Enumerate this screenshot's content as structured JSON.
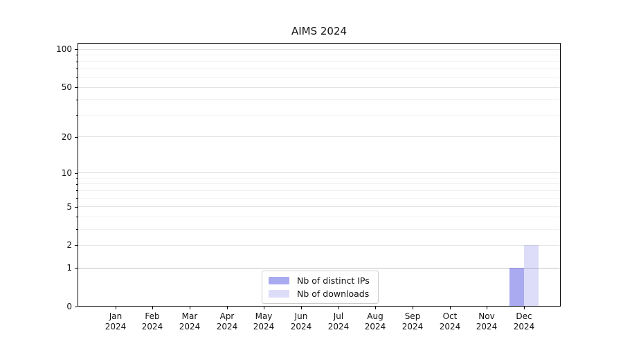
{
  "figure": {
    "title": "AIMS 2024",
    "background": "#ffffff"
  },
  "chart_data": {
    "type": "bar",
    "title": "AIMS 2024",
    "categories": [
      "Jan 2024",
      "Feb 2024",
      "Mar 2024",
      "Apr 2024",
      "May 2024",
      "Jun 2024",
      "Jul 2024",
      "Aug 2024",
      "Sep 2024",
      "Oct 2024",
      "Nov 2024",
      "Dec 2024"
    ],
    "series": [
      {
        "name": "Nb of distinct IPs",
        "color": "rgba(100,100,230,0.55)",
        "values": [
          0,
          0,
          0,
          0,
          0,
          0,
          0,
          0,
          0,
          0,
          0,
          1
        ]
      },
      {
        "name": "Nb of downloads",
        "color": "rgba(100,100,230,0.22)",
        "values": [
          0,
          0,
          0,
          0,
          0,
          0,
          0,
          0,
          0,
          0,
          0,
          2
        ]
      }
    ],
    "yscale": "log1p",
    "ylim": [
      0,
      112
    ],
    "y_major_ticks": [
      0,
      1,
      2,
      5,
      10,
      20,
      50,
      100
    ],
    "y_minor_ticks": [
      3,
      4,
      6,
      7,
      8,
      9,
      30,
      40,
      60,
      70,
      80,
      90
    ],
    "grid": true,
    "legend_position": "lower center"
  },
  "colors": {
    "axis": "#000000",
    "gridline_major": "#e3e3e3",
    "gridline_minor": "#f0f0f0",
    "gridline_unit_one": "#c0c0c0",
    "bar_distinct_ips": "rgba(100,100,230,0.55)",
    "bar_downloads": "rgba(100,100,230,0.22)"
  }
}
